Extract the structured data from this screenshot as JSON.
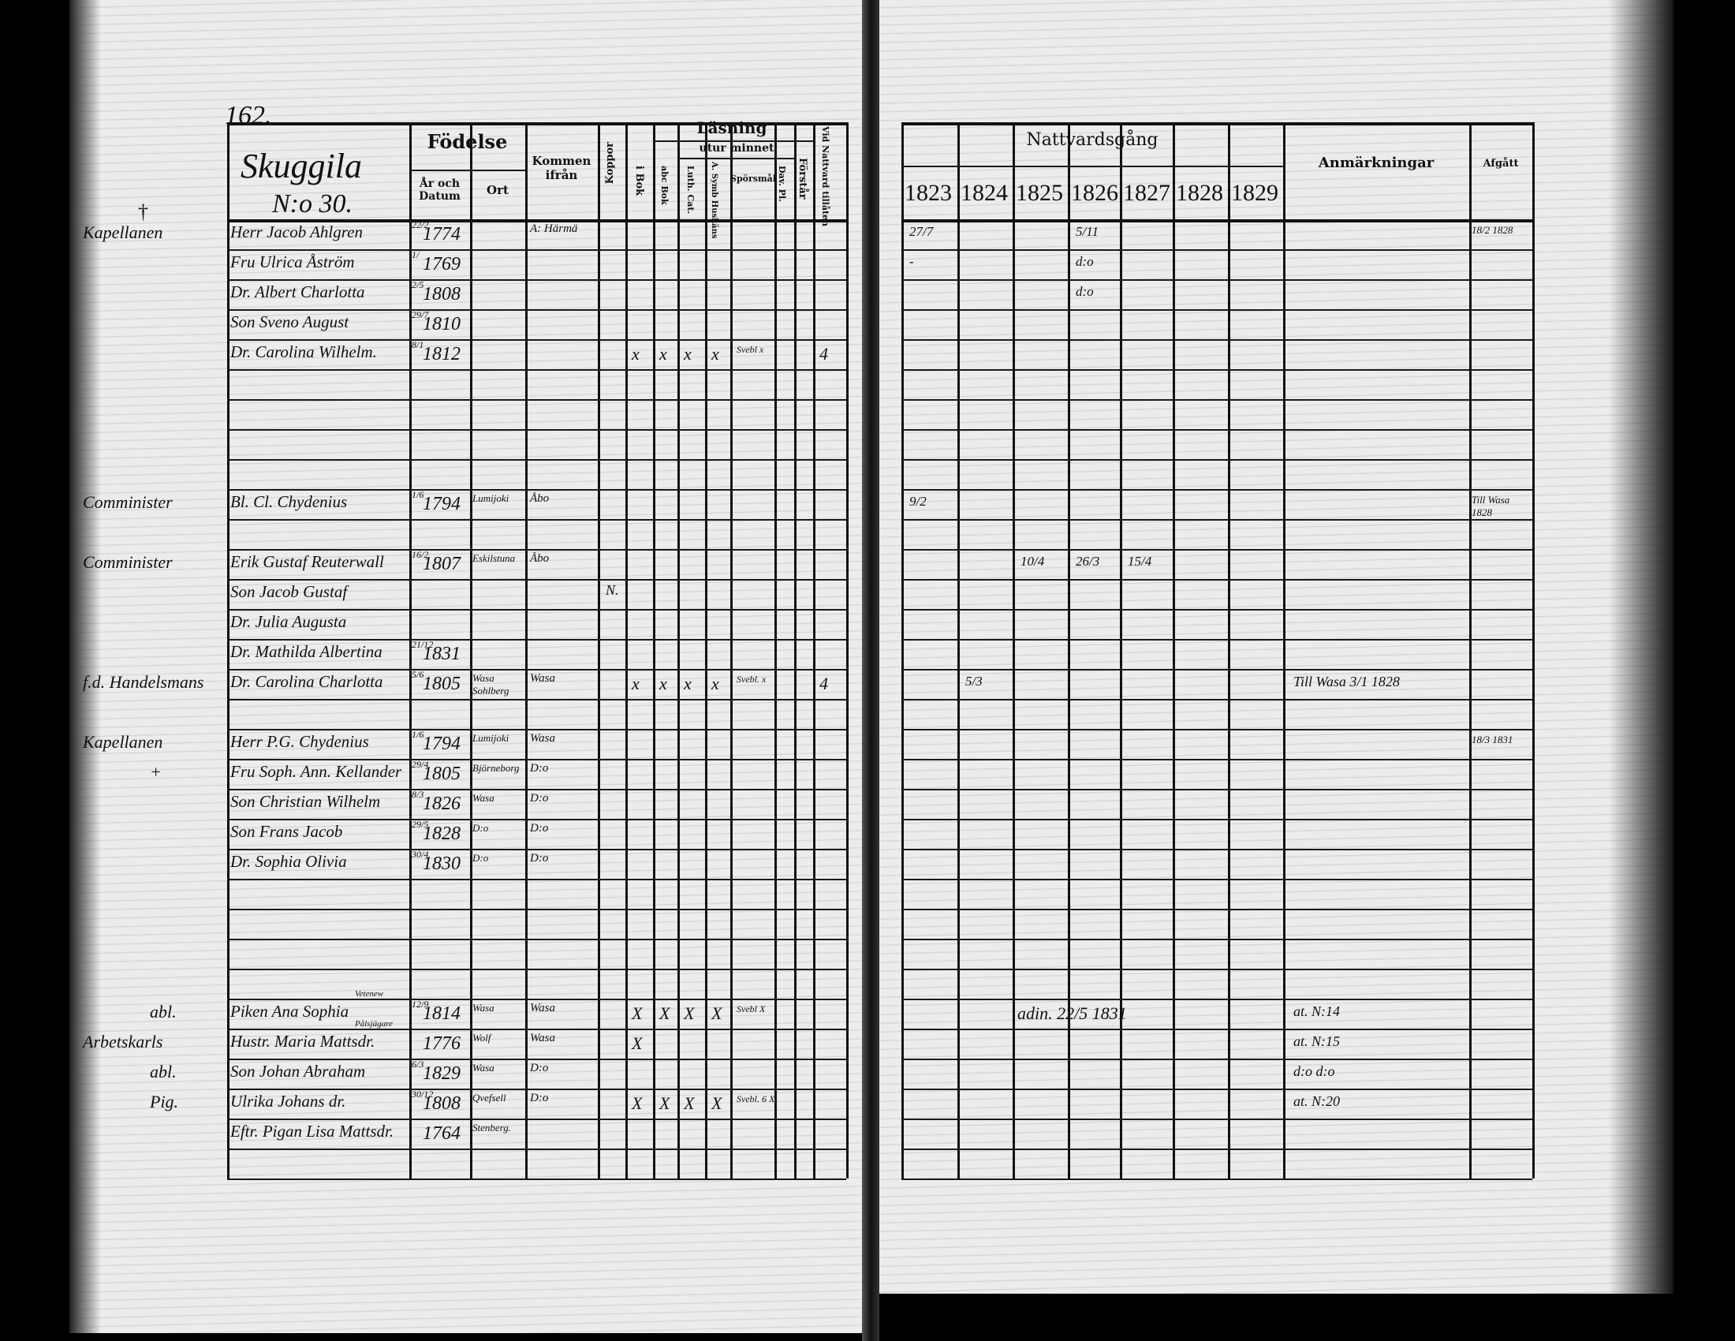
{
  "left_page": {
    "page_number": "162.",
    "village": "Skuggila",
    "house_number": "N:o 30.",
    "headers": {
      "name": "",
      "birth": "Födelse",
      "birth_date": "År och Datum",
      "birth_place": "Ort",
      "from": "Kommen ifrån",
      "smallpox": "Koppor",
      "reading": "Läsning",
      "in_book": "i Bok",
      "by_heart": "utur minnet",
      "abc_book": "abc Bok",
      "luther_catechism": "Luth. Cat.",
      "symbol_books": "A. Symb Huskäns",
      "questions": "Spörsmål",
      "david_psalms": "Dav. Pl.",
      "understanding": "Förstår",
      "communion_admitted": "Vid Nattvard tillåten"
    },
    "rows": [
      {
        "role": "Kapellanen",
        "cross": "†",
        "name": "Herr Jacob Ahlgren",
        "date": "22/2",
        "year": "1774",
        "from": "A: Härmä"
      },
      {
        "name": "Fru Ulrica Åström",
        "date": "1/",
        "year": "1769"
      },
      {
        "role": "",
        "name": "Dr. Albert Charlotta",
        "date": "2/5",
        "year": "1808"
      },
      {
        "name": "Son Sveno August",
        "date": "29/7",
        "year": "1810"
      },
      {
        "name": "Dr. Carolina Wilhelm.",
        "date": "8/1",
        "year": "1812",
        "marks": [
          "x",
          "x",
          "x",
          "x",
          "Svebl x",
          "",
          "",
          "4"
        ]
      },
      {},
      {},
      {},
      {},
      {
        "role": "Comminister",
        "name": "Bl. Cl. Chydenius",
        "date": "1/6",
        "year": "1794",
        "place": "Lumijoki",
        "from": "Åbo"
      },
      {},
      {
        "role": "Comminister",
        "name": "Erik Gustaf Reuterwall",
        "date": "16/2",
        "year": "1807",
        "place": "Eskilstuna",
        "from": "Åbo"
      },
      {
        "name": "Son Jacob Gustaf",
        "smallpox": "N."
      },
      {
        "name": "Dr. Julia Augusta"
      },
      {
        "name": "Dr. Mathilda Albertina",
        "date": "21/12",
        "year": "1831"
      },
      {
        "role": "f.d. Handelsmans",
        "name": "Dr. Carolina Charlotta",
        "date": "5/6",
        "year": "1805",
        "place": "Wasa Sohlberg",
        "from": "Wasa",
        "marks": [
          "x",
          "x",
          "x",
          "x",
          "Svebl. x",
          "",
          "",
          "4"
        ]
      },
      {},
      {
        "role": "Kapellanen",
        "name": "Herr P.G. Chydenius",
        "date": "1/6",
        "year": "1794",
        "place": "Lumijoki",
        "from": "Wasa"
      },
      {
        "role": "+",
        "name": "Fru Soph. Ann. Kellander",
        "date": "29/4",
        "year": "1805",
        "place": "Björneborg",
        "from": "D:o"
      },
      {
        "name": "Son Christian Wilhelm",
        "date": "8/3",
        "year": "1826",
        "place": "Wasa",
        "from": "D:o"
      },
      {
        "name": "Son Frans Jacob",
        "date": "29/5",
        "year": "1828",
        "place": "D:o",
        "from": "D:o"
      },
      {
        "name": "Dr. Sophia Olivia",
        "date": "30/4",
        "year": "1830",
        "place": "D:o",
        "from": "D:o"
      },
      {},
      {},
      {},
      {},
      {
        "role": "abl.",
        "name": "Piken Ana Sophia",
        "note": "Vetenew",
        "date": "12/9",
        "year": "1814",
        "place": "Wasa",
        "from": "Wasa",
        "marks": [
          "X",
          "X",
          "X",
          "X",
          "Svebl X"
        ]
      },
      {
        "role": "Arbetskarls",
        "name": "Hustr. Maria Mattsdr.",
        "note": "Pålsjägare",
        "year": "1776",
        "place": "Wolf",
        "from": "Wasa",
        "marks": [
          "X"
        ]
      },
      {
        "role": "abl.",
        "name": "Son Johan Abraham",
        "date": "6/3",
        "year": "1829",
        "place": "Wasa",
        "from": "D:o"
      },
      {
        "role": "Pig.",
        "name": "Ulrika Johans dr.",
        "date": "30/12",
        "year": "1808",
        "place": "Qvefsell",
        "from": "D:o",
        "marks": [
          "X",
          "X",
          "X",
          "X",
          "Svebl. 6 X"
        ]
      },
      {
        "name": "Eftr. Pigan Lisa Mattsdr.",
        "year": "1764",
        "place": "Stenberg."
      },
      {}
    ]
  },
  "right_page": {
    "title": "Nattvardsgång",
    "years": [
      "1823",
      "1824",
      "1825",
      "1826",
      "1827",
      "1828",
      "1829"
    ],
    "remarks_header": "Anmärkningar",
    "departed_header": "Afgått",
    "rows": [
      {
        "years": [
          "27/7",
          "",
          "",
          "5/11",
          "",
          "",
          ""
        ],
        "departed": "18/2 1828"
      },
      {
        "years": [
          "-",
          "",
          "",
          "d:o",
          "",
          "",
          ""
        ]
      },
      {
        "years": [
          "",
          "",
          "",
          "d:o",
          "",
          "",
          ""
        ]
      },
      {},
      {},
      {},
      {},
      {},
      {},
      {
        "years": [
          "9/2",
          "",
          "",
          "",
          "",
          "",
          ""
        ],
        "departed": "Till Wasa 1828"
      },
      {},
      {
        "years": [
          "",
          "",
          "10/4",
          "26/3",
          "15/4",
          "",
          ""
        ]
      },
      {},
      {},
      {},
      {
        "years": [
          "",
          "5/3",
          "",
          "",
          "",
          "",
          ""
        ],
        "remarks": "Till Wasa 3/1 1828"
      },
      {},
      {
        "departed": "18/3 1831"
      },
      {},
      {},
      {},
      {},
      {},
      {},
      {},
      {},
      {
        "span": "adin. 22/5 1831",
        "remarks": "at. N:14"
      },
      {
        "remarks": "at. N:15"
      },
      {
        "remarks": "d:o d:o"
      },
      {
        "remarks": "at. N:20"
      },
      {},
      {}
    ]
  }
}
